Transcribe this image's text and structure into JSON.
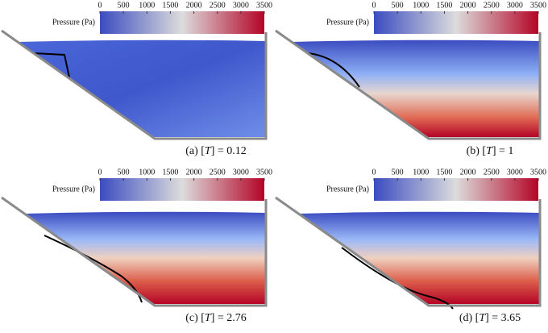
{
  "colorbar": {
    "label": "Pressure (Pa)",
    "clim": [
      0,
      3500
    ],
    "ticks": [
      0,
      500,
      1000,
      1500,
      2000,
      2500,
      3000,
      3500
    ]
  },
  "panels": [
    {
      "caption": [
        "(a) [",
        "T",
        "] = 0.12"
      ]
    },
    {
      "caption": [
        "(b) [",
        "T",
        "] = 1"
      ]
    },
    {
      "caption": [
        "(c) [",
        "T",
        "] = 2.76"
      ]
    },
    {
      "caption": [
        "(d) [",
        "T",
        "] = 3.65"
      ]
    }
  ]
}
